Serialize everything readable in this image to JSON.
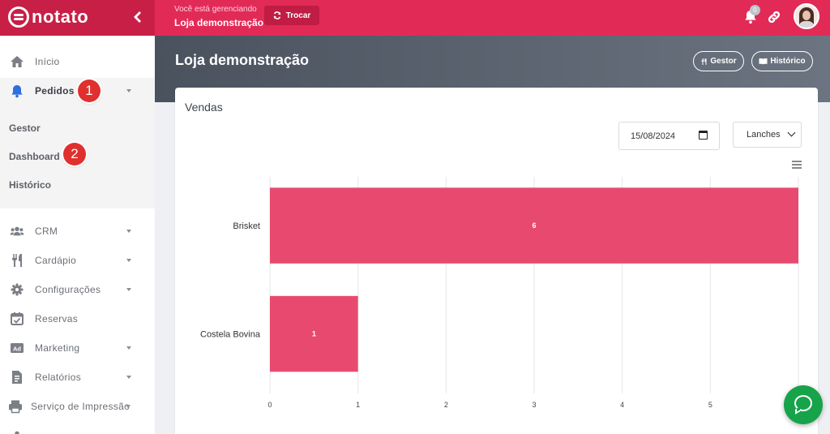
{
  "brand": {
    "name": "notato"
  },
  "topbar": {
    "managing_label": "Você está gerenciando",
    "store_name": "Loja demonstração",
    "switch_label": "Trocar",
    "notification_count": "0"
  },
  "sidebar": {
    "items": [
      {
        "label": "Início",
        "icon": "home-icon"
      },
      {
        "label": "Pedidos",
        "icon": "bell-icon"
      },
      {
        "label": "CRM",
        "icon": "users-icon"
      },
      {
        "label": "Cardápio",
        "icon": "utensils-icon"
      },
      {
        "label": "Configurações",
        "icon": "gear-icon"
      },
      {
        "label": "Reservas",
        "icon": "calendar-check-icon"
      },
      {
        "label": "Marketing",
        "icon": "ad-icon"
      },
      {
        "label": "Relatórios",
        "icon": "report-icon"
      },
      {
        "label": "Serviço de Impressão",
        "icon": "printer-icon"
      }
    ],
    "pedidos_sub": [
      {
        "label": "Gestor"
      },
      {
        "label": "Dashboard"
      },
      {
        "label": "Histórico"
      }
    ]
  },
  "steps": [
    "1",
    "2"
  ],
  "header": {
    "title": "Loja demonstração",
    "gestor_label": "Gestor",
    "historico_label": "Histórico"
  },
  "card": {
    "title": "Vendas",
    "date_value": "15/08/2024",
    "category_value": "Lanches"
  },
  "colors": {
    "accent": "#e22a57",
    "bar": "#e84a6f",
    "chat": "#16a34a"
  },
  "chart_data": {
    "type": "bar",
    "orientation": "horizontal",
    "categories": [
      "Brisket",
      "Costela Bovina"
    ],
    "values": [
      6,
      1
    ],
    "data_labels": [
      "6",
      "1"
    ],
    "xlim": [
      0,
      6
    ],
    "x_ticks": [
      "0",
      "1",
      "2",
      "3",
      "4",
      "5"
    ],
    "grid": true,
    "title": "",
    "xlabel": "",
    "ylabel": ""
  }
}
